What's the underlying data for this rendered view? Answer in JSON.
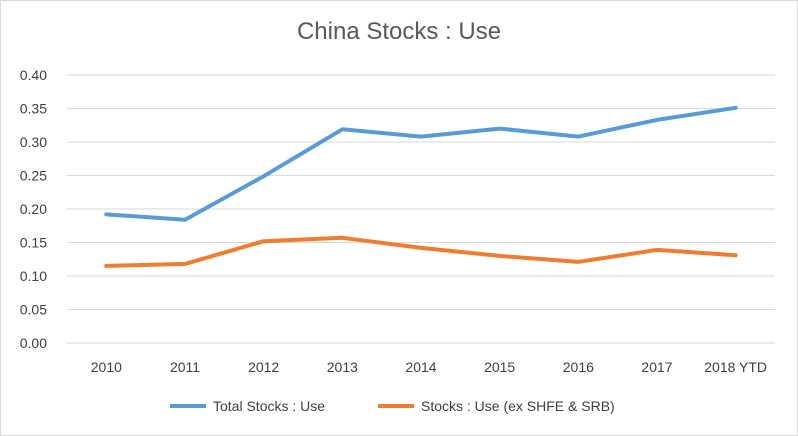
{
  "chart_data": {
    "type": "line",
    "title": "China Stocks : Use",
    "categories": [
      "2010",
      "2011",
      "2012",
      "2013",
      "2014",
      "2015",
      "2016",
      "2017",
      "2018 YTD"
    ],
    "series": [
      {
        "name": "Total Stocks : Use",
        "color": "#5b9bd5",
        "values": [
          0.192,
          0.184,
          0.249,
          0.319,
          0.308,
          0.32,
          0.308,
          0.333,
          0.351
        ]
      },
      {
        "name": "Stocks : Use (ex SHFE & SRB)",
        "color": "#ed7d31",
        "values": [
          0.115,
          0.118,
          0.152,
          0.157,
          0.142,
          0.13,
          0.121,
          0.139,
          0.131
        ]
      }
    ],
    "ylim": [
      0,
      0.4
    ],
    "yticks": [
      "0.00",
      "0.05",
      "0.10",
      "0.15",
      "0.20",
      "0.25",
      "0.30",
      "0.35",
      "0.40"
    ],
    "gridlines": true,
    "legend_position": "bottom"
  }
}
